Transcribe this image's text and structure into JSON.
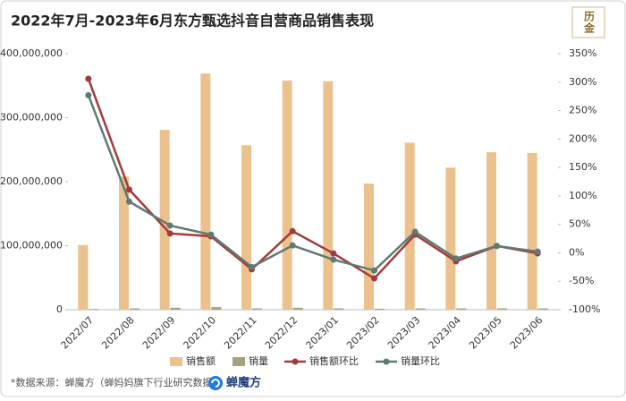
{
  "chart_data": {
    "type": "bar",
    "title": "2022年7月-2023年6月东方甄选抖音自营商品销售表现",
    "categories": [
      "2022/07",
      "2022/08",
      "2022/09",
      "2022/10",
      "2022/11",
      "2022/12",
      "2023/01",
      "2023/02",
      "2023/03",
      "2023/04",
      "2023/05",
      "2023/06"
    ],
    "series": [
      {
        "name": "销售额",
        "type": "bar",
        "color": "#ebc18d",
        "values": [
          101000000,
          208000000,
          281000000,
          369000000,
          257000000,
          358000000,
          357000000,
          197000000,
          261000000,
          222000000,
          246000000,
          245000000
        ]
      },
      {
        "name": "销量",
        "type": "bar",
        "color": "#a9a07c",
        "values": [
          1000000,
          2000000,
          3000000,
          4000000,
          2000000,
          3000000,
          2000000,
          1500000,
          2000000,
          2000000,
          2000000,
          2000000
        ]
      },
      {
        "name": "销售额环比",
        "type": "line",
        "axis": "y2",
        "color": "#a23b3b",
        "values": [
          306,
          111,
          34,
          29,
          -29,
          38,
          -1,
          -45,
          32,
          -15,
          12,
          -1
        ]
      },
      {
        "name": "销量环比",
        "type": "line",
        "axis": "y2",
        "color": "#5f7a73",
        "values": [
          277,
          90,
          48,
          32,
          -25,
          13,
          -12,
          -31,
          37,
          -10,
          12,
          2
        ]
      }
    ],
    "ylim": [
      0,
      400000000
    ],
    "yticks": [
      0,
      {
        "value": 100000000,
        "label": "100,000,000"
      },
      {
        "value": 200000000,
        "label": "200,000,000"
      },
      {
        "value": 300000000,
        "label": "300,000,000"
      },
      {
        "value": 400000000,
        "label": "400,000,000"
      }
    ],
    "y2lim": [
      -100,
      350
    ],
    "y2ticks": [
      {
        "value": -100,
        "label": "-100%"
      },
      {
        "value": -50,
        "label": "-50%"
      },
      {
        "value": 0,
        "label": "0%"
      },
      {
        "value": 50,
        "label": "50%"
      },
      {
        "value": 100,
        "label": "100%"
      },
      {
        "value": 150,
        "label": "150%"
      },
      {
        "value": 200,
        "label": "200%"
      },
      {
        "value": 250,
        "label": "250%"
      },
      {
        "value": 300,
        "label": "300%"
      },
      {
        "value": 350,
        "label": "350%"
      }
    ],
    "grid": false,
    "legend": "bottom"
  },
  "badge": "历金",
  "footer": {
    "source": "*数据来源：蝉魔方（蝉妈妈旗下行业研究数据）",
    "brand": "蝉魔方"
  }
}
